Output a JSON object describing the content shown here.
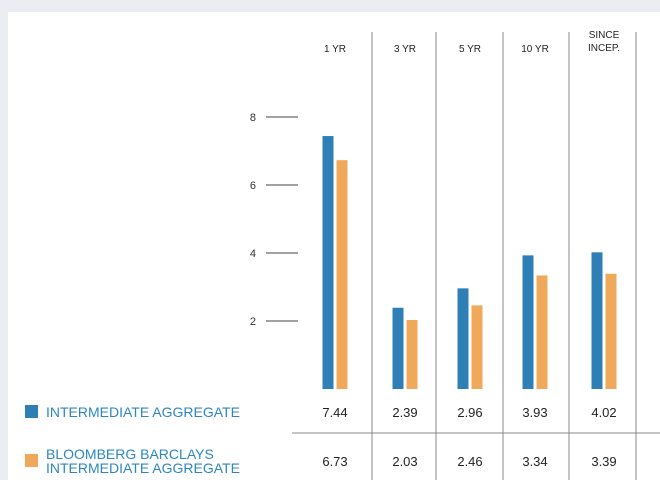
{
  "chart_data": {
    "type": "bar",
    "categories": [
      "1 YR",
      "3 YR",
      "5 YR",
      "10 YR",
      "SINCE INCEP."
    ],
    "category_lines": [
      [
        "1 YR"
      ],
      [
        "3 YR"
      ],
      [
        "5 YR"
      ],
      [
        "10 YR"
      ],
      [
        "SINCE",
        "INCEP."
      ]
    ],
    "series": [
      {
        "name": "INTERMEDIATE AGGREGATE",
        "name_lines": [
          "INTERMEDIATE AGGREGATE"
        ],
        "values": [
          7.44,
          2.39,
          2.96,
          3.93,
          4.02
        ],
        "value_labels": [
          "7.44",
          "2.39",
          "2.96",
          "3.93",
          "4.02"
        ],
        "color": "#2e7fb5"
      },
      {
        "name": "BLOOMBERG BARCLAYS INTERMEDIATE AGGREGATE",
        "name_lines": [
          "BLOOMBERG BARCLAYS",
          "INTERMEDIATE AGGREGATE"
        ],
        "values": [
          6.73,
          2.03,
          2.46,
          3.34,
          3.39
        ],
        "value_labels": [
          "6.73",
          "2.03",
          "2.46",
          "3.34",
          "3.39"
        ],
        "color": "#f0a95b"
      }
    ],
    "yticks": [
      2,
      4,
      6,
      8
    ],
    "ylim": [
      0,
      8.8
    ],
    "title": "",
    "xlabel": "",
    "ylabel": ""
  }
}
